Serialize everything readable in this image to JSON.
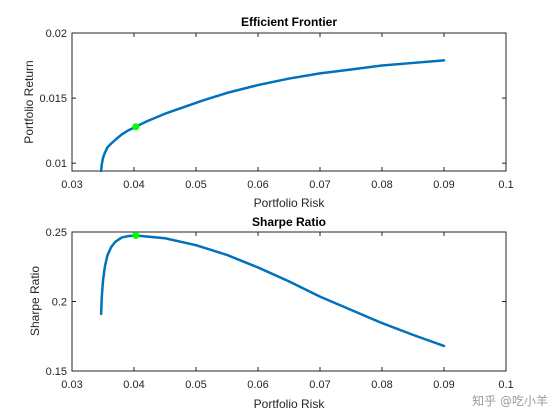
{
  "chart_data": [
    {
      "type": "line",
      "title": "Efficient Frontier",
      "xlabel": "Portfolio Risk",
      "ylabel": "Portfolio Return",
      "xlim": [
        0.03,
        0.1
      ],
      "ylim": [
        0.0094,
        0.02
      ],
      "xticks": [
        "0.03",
        "0.04",
        "0.05",
        "0.06",
        "0.07",
        "0.08",
        "0.09",
        "0.1"
      ],
      "yticks": [
        "0.01",
        "0.015",
        "0.02"
      ],
      "grid": false,
      "line_color": "#0072BD",
      "marker_color": "#00FF00",
      "series": [
        {
          "x": [
            0.0347,
            0.0348,
            0.035,
            0.0353,
            0.0357,
            0.0363,
            0.037,
            0.038,
            0.039,
            0.0403,
            0.042,
            0.045,
            0.048,
            0.051,
            0.055,
            0.06,
            0.065,
            0.07,
            0.075,
            0.08,
            0.085,
            0.09
          ],
          "y": [
            0.0094,
            0.0099,
            0.0104,
            0.0108,
            0.0112,
            0.0115,
            0.0118,
            0.0122,
            0.0125,
            0.0128,
            0.0132,
            0.0138,
            0.0143,
            0.0148,
            0.0154,
            0.016,
            0.0165,
            0.0169,
            0.0172,
            0.0175,
            0.0177,
            0.0179
          ]
        }
      ],
      "highlight": {
        "x": 0.0403,
        "y": 0.0128
      }
    },
    {
      "type": "line",
      "title": "Sharpe Ratio",
      "xlabel": "Portfolio Risk",
      "ylabel": "Sharpe Ratio",
      "xlim": [
        0.03,
        0.1
      ],
      "ylim": [
        0.15,
        0.25
      ],
      "xticks": [
        "0.03",
        "0.04",
        "0.05",
        "0.06",
        "0.07",
        "0.08",
        "0.09",
        "0.1"
      ],
      "yticks": [
        "0.15",
        "0.2",
        "0.25"
      ],
      "grid": false,
      "line_color": "#0072BD",
      "marker_color": "#00FF00",
      "series": [
        {
          "x": [
            0.0347,
            0.0348,
            0.035,
            0.0353,
            0.0357,
            0.0363,
            0.037,
            0.038,
            0.039,
            0.0403,
            0.045,
            0.05,
            0.055,
            0.06,
            0.065,
            0.07,
            0.075,
            0.08,
            0.085,
            0.09
          ],
          "y": [
            0.191,
            0.203,
            0.215,
            0.225,
            0.233,
            0.239,
            0.243,
            0.246,
            0.247,
            0.2475,
            0.2455,
            0.2405,
            0.2335,
            0.2245,
            0.2145,
            0.2035,
            0.194,
            0.1845,
            0.176,
            0.168
          ]
        }
      ],
      "highlight": {
        "x": 0.0403,
        "y": 0.2475
      }
    }
  ],
  "watermark": "知乎 @吃小羊"
}
